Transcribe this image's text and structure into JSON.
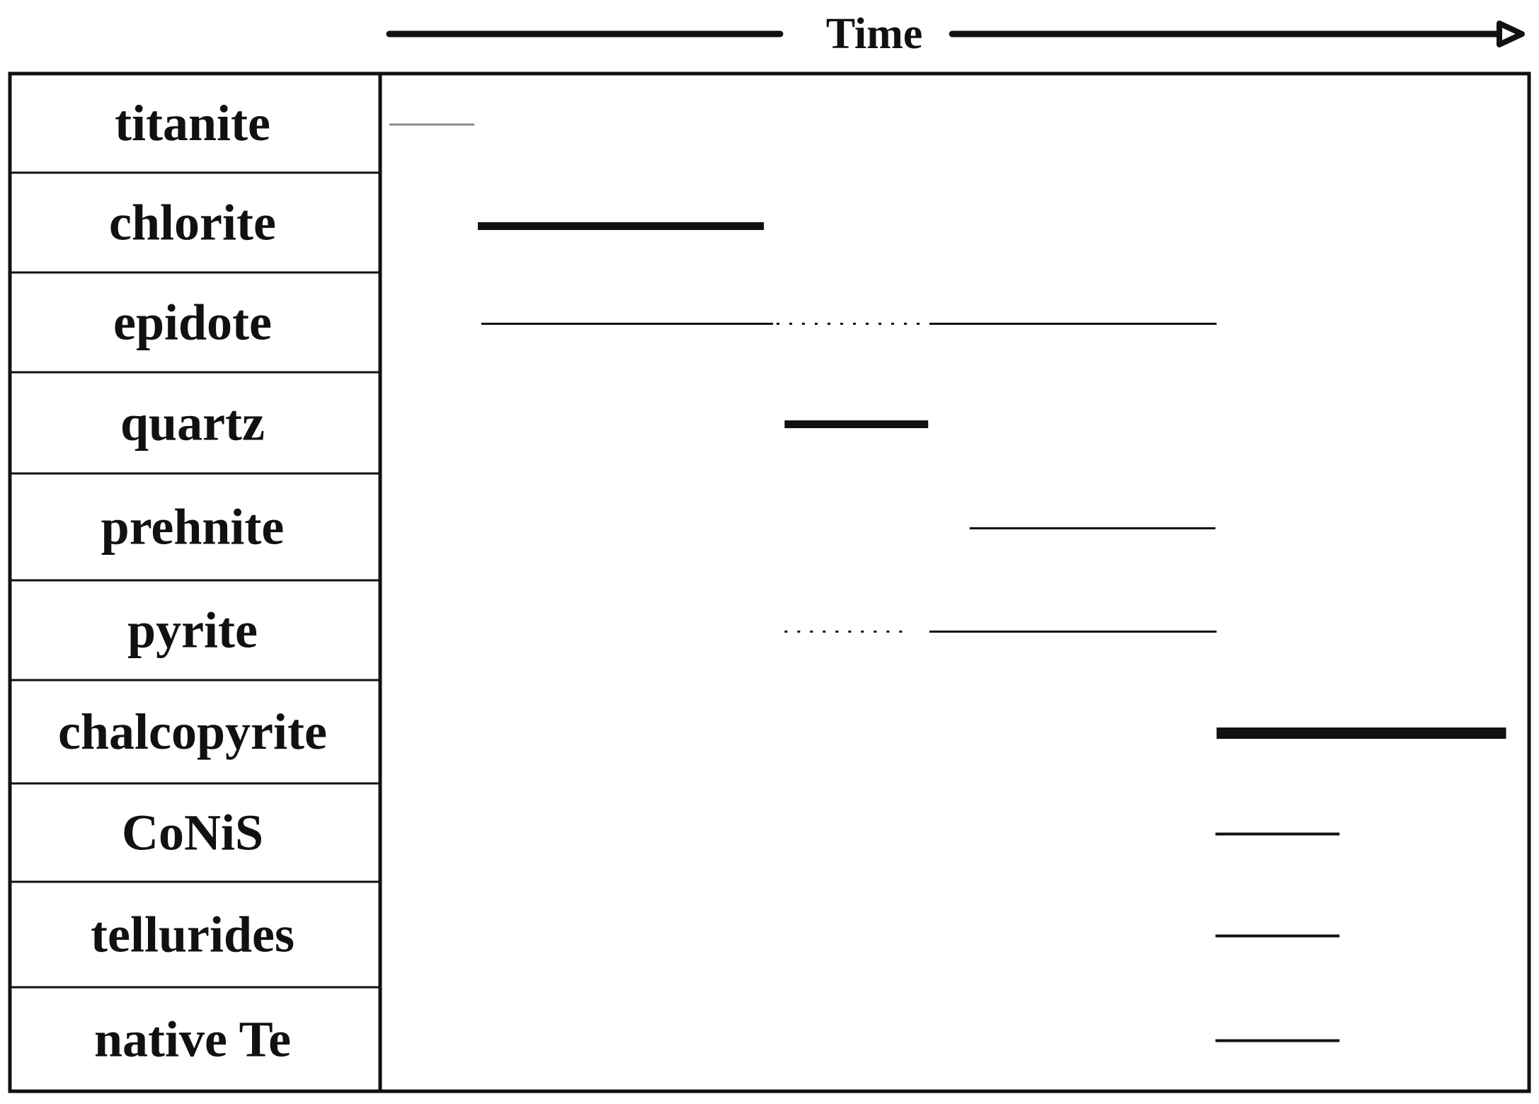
{
  "time_axis": {
    "label": "Time"
  },
  "colors": {
    "ink": "#111111",
    "faint": "#8a8a8a",
    "background": "#ffffff"
  },
  "minerals": [
    {
      "name": "titanite",
      "segments": [
        {
          "start": 0.008,
          "end": 0.082,
          "weight": "faint",
          "style": "solid"
        }
      ]
    },
    {
      "name": "chlorite",
      "segments": [
        {
          "start": 0.085,
          "end": 0.334,
          "weight": "thick",
          "style": "solid"
        }
      ]
    },
    {
      "name": "epidote",
      "segments": [
        {
          "start": 0.088,
          "end": 0.342,
          "weight": "thin",
          "style": "solid"
        },
        {
          "start": 0.345,
          "end": 0.475,
          "weight": "thin",
          "style": "dotted"
        },
        {
          "start": 0.478,
          "end": 0.728,
          "weight": "thin",
          "style": "solid"
        }
      ]
    },
    {
      "name": "quartz",
      "segments": [
        {
          "start": 0.352,
          "end": 0.477,
          "weight": "thick",
          "style": "solid"
        }
      ]
    },
    {
      "name": "prehnite",
      "segments": [
        {
          "start": 0.513,
          "end": 0.727,
          "weight": "thin",
          "style": "solid"
        }
      ]
    },
    {
      "name": "pyrite",
      "segments": [
        {
          "start": 0.352,
          "end": 0.46,
          "weight": "thin",
          "style": "dotted"
        },
        {
          "start": 0.478,
          "end": 0.728,
          "weight": "thin",
          "style": "solid"
        }
      ]
    },
    {
      "name": "chalcopyrite",
      "segments": [
        {
          "start": 0.728,
          "end": 0.98,
          "weight": "bold",
          "style": "solid"
        }
      ]
    },
    {
      "name": "CoNiS",
      "segments": [
        {
          "start": 0.727,
          "end": 0.835,
          "weight": "medium",
          "style": "solid"
        }
      ]
    },
    {
      "name": "tellurides",
      "segments": [
        {
          "start": 0.727,
          "end": 0.835,
          "weight": "medium",
          "style": "solid"
        }
      ]
    },
    {
      "name": "native Te",
      "segments": [
        {
          "start": 0.727,
          "end": 0.835,
          "weight": "medium",
          "style": "solid"
        }
      ]
    }
  ]
}
